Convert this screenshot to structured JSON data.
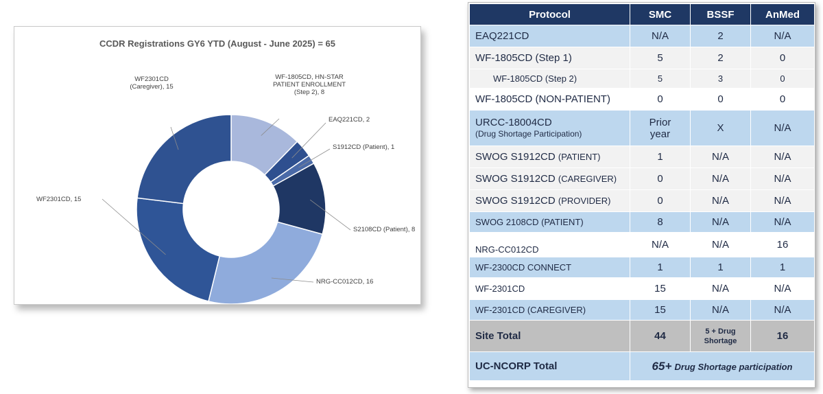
{
  "chart_data": {
    "type": "pie",
    "donut": true,
    "title": "CCDR Registrations GY6 YTD  (August - June 2025) = 65",
    "slices": [
      {
        "label": [
          "WF-1805CD, HN-STAR",
          "PATIENT ENROLLMENT",
          "(Step 2), 8"
        ],
        "value": 8,
        "color": "#a9b8dc"
      },
      {
        "label": [
          "EAQ221CD, 2"
        ],
        "value": 2,
        "color": "#2e4f8f"
      },
      {
        "label": [
          "S1912CD (Patient), 1"
        ],
        "value": 1,
        "color": "#4a6aa8"
      },
      {
        "label": [
          "S2108CD (Patient), 8"
        ],
        "value": 8,
        "color": "#1f3764"
      },
      {
        "label": [
          "NRG-CC012CD, 16"
        ],
        "value": 16,
        "color": "#8fabdc"
      },
      {
        "label": [
          "WF2301CD, 15"
        ],
        "value": 15,
        "color": "#2f5597"
      },
      {
        "label": [
          "WF2301CD",
          "(Caregiver), 15"
        ],
        "value": 15,
        "color": "#2f5291"
      }
    ]
  },
  "table": {
    "headers": [
      "Protocol",
      "SMC",
      "BSSF",
      "AnMed"
    ],
    "rows": [
      {
        "protocol": "EAQ221CD",
        "smc": "N/A",
        "bssf": "2",
        "anmed": "N/A"
      },
      {
        "protocol": "WF-1805CD (Step 1)",
        "smc": "5",
        "bssf": "2",
        "anmed": "0"
      },
      {
        "protocol": "WF-1805CD (Step 2)",
        "smc": "5",
        "bssf": "3",
        "anmed": "0"
      },
      {
        "protocol": "WF-1805CD (NON-PATIENT)",
        "smc": "0",
        "bssf": "0",
        "anmed": "0"
      },
      {
        "protocol": "URCC-18004CD",
        "protocol_sub": "(Drug Shortage Participation)",
        "smc": "Prior",
        "smc_sub": "year",
        "bssf": "X",
        "anmed": "N/A"
      },
      {
        "protocol": "SWOG S1912CD",
        "protocol_suffix": "(PATIENT)",
        "smc": "1",
        "bssf": "N/A",
        "anmed": "N/A"
      },
      {
        "protocol": "SWOG S1912CD",
        "protocol_suffix": "(CAREGIVER)",
        "smc": "0",
        "bssf": "N/A",
        "anmed": "N/A"
      },
      {
        "protocol": "SWOG S1912CD",
        "protocol_suffix": "(PROVIDER)",
        "smc": "0",
        "bssf": "N/A",
        "anmed": "N/A"
      },
      {
        "protocol": "SWOG 2108CD (PATIENT)",
        "smc": "8",
        "bssf": "N/A",
        "anmed": "N/A"
      },
      {
        "protocol": "NRG-CC012CD",
        "smc": "N/A",
        "bssf": "N/A",
        "anmed": "16"
      },
      {
        "protocol": "WF-2300CD CONNECT",
        "smc": "1",
        "bssf": "1",
        "anmed": "1"
      },
      {
        "protocol": "WF-2301CD",
        "smc": "15",
        "bssf": "N/A",
        "anmed": "N/A"
      },
      {
        "protocol": "WF-2301CD (CAREGIVER)",
        "smc": "15",
        "bssf": "N/A",
        "anmed": "N/A"
      }
    ],
    "site_total": {
      "label": "Site Total",
      "smc": "44",
      "bssf": "5 + Drug",
      "bssf_sub": "Shortage",
      "anmed": "16"
    },
    "uc_total": {
      "label": "UC-NCORP Total",
      "value_big": "65+",
      "value_rest": "Drug Shortage participation"
    }
  }
}
